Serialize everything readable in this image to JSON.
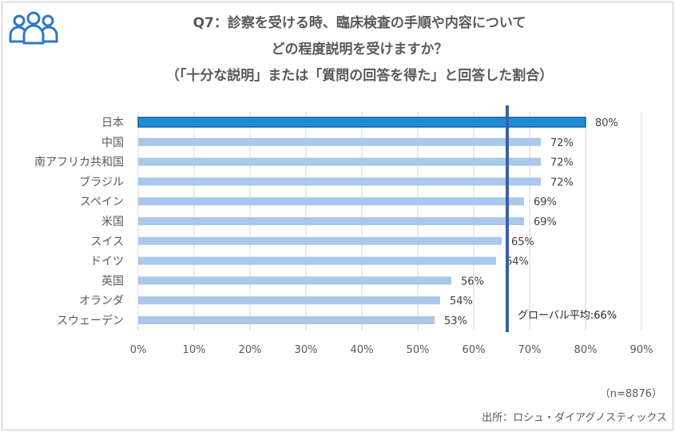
{
  "title_lines": [
    "Q7：診察を受ける時、臨床検査の手順や内容について",
    "どの程度説明を受けますか？",
    "（「十分な説明」または「質問の回答を得た」と回答した割合）"
  ],
  "sample_note": "（n=8876）",
  "source_note": "出所：ロシュ・ダイアグノスティックス",
  "colors": {
    "highlight_bar": "#1f8dd6",
    "highlight_outline": "#155f9a",
    "bar": "#a9c8ea",
    "average_line": "#3a5ea8",
    "gridline": "#d9d9d9"
  },
  "chart_data": {
    "type": "bar",
    "orientation": "horizontal",
    "categories": [
      "日本",
      "中国",
      "南アフリカ共和国",
      "ブラジル",
      "スペイン",
      "米国",
      "スイス",
      "ドイツ",
      "英国",
      "オランダ",
      "スウェーデン"
    ],
    "values": [
      80,
      72,
      72,
      72,
      69,
      69,
      65,
      64,
      56,
      54,
      53
    ],
    "value_labels": [
      "80%",
      "72%",
      "72%",
      "72%",
      "69%",
      "69%",
      "65%",
      "64%",
      "56%",
      "54%",
      "53%"
    ],
    "highlighted_category": "日本",
    "xlim": [
      0,
      90
    ],
    "x_ticks": [
      0,
      10,
      20,
      30,
      40,
      50,
      60,
      70,
      80,
      90
    ],
    "x_tick_labels": [
      "0%",
      "10%",
      "20%",
      "30%",
      "40%",
      "50%",
      "60%",
      "70%",
      "80%",
      "90%"
    ],
    "grid": true,
    "reference_line": {
      "value": 66,
      "label": "グローバル平均:66%"
    }
  }
}
